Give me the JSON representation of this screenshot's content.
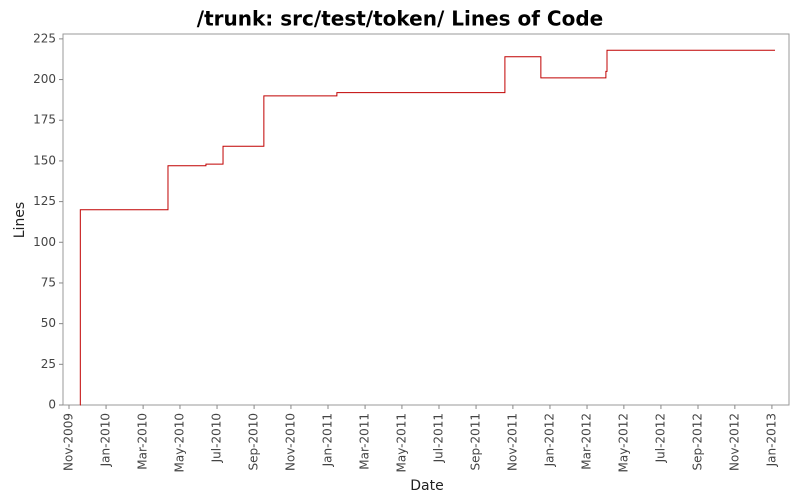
{
  "chart_data": {
    "type": "line",
    "title": "/trunk: src/test/token/ Lines of Code",
    "x_label": "Date",
    "y_label": "Lines",
    "step": "after",
    "grid": false,
    "x": [
      2009.883,
      2009.884,
      2010.279,
      2010.45,
      2010.527,
      2010.711,
      2011.04,
      2011.797,
      2011.959,
      2012.252,
      2012.257,
      2013.014
    ],
    "series": [
      {
        "name": "Lines",
        "color": "#c00000",
        "values": [
          0,
          120,
          147,
          148,
          159,
          190,
          192,
          214,
          201,
          205,
          218,
          218
        ]
      }
    ],
    "xlim": [
      2009.806,
      2013.077
    ],
    "ylim": [
      0,
      228
    ],
    "yticks": [
      0,
      25,
      50,
      75,
      100,
      125,
      150,
      175,
      200,
      225
    ],
    "xticks": [
      {
        "value": 2009.833,
        "label": "Nov-2009"
      },
      {
        "value": 2010.0,
        "label": "Jan-2010"
      },
      {
        "value": 2010.167,
        "label": "Mar-2010"
      },
      {
        "value": 2010.333,
        "label": "May-2010"
      },
      {
        "value": 2010.5,
        "label": "Jul-2010"
      },
      {
        "value": 2010.667,
        "label": "Sep-2010"
      },
      {
        "value": 2010.833,
        "label": "Nov-2010"
      },
      {
        "value": 2011.0,
        "label": "Jan-2011"
      },
      {
        "value": 2011.167,
        "label": "Mar-2011"
      },
      {
        "value": 2011.333,
        "label": "May-2011"
      },
      {
        "value": 2011.5,
        "label": "Jul-2011"
      },
      {
        "value": 2011.667,
        "label": "Sep-2011"
      },
      {
        "value": 2011.833,
        "label": "Nov-2011"
      },
      {
        "value": 2012.0,
        "label": "Jan-2012"
      },
      {
        "value": 2012.167,
        "label": "Mar-2012"
      },
      {
        "value": 2012.333,
        "label": "May-2012"
      },
      {
        "value": 2012.5,
        "label": "Jul-2012"
      },
      {
        "value": 2012.667,
        "label": "Sep-2012"
      },
      {
        "value": 2012.833,
        "label": "Nov-2012"
      },
      {
        "value": 2013.0,
        "label": "Jan-2013"
      }
    ]
  }
}
